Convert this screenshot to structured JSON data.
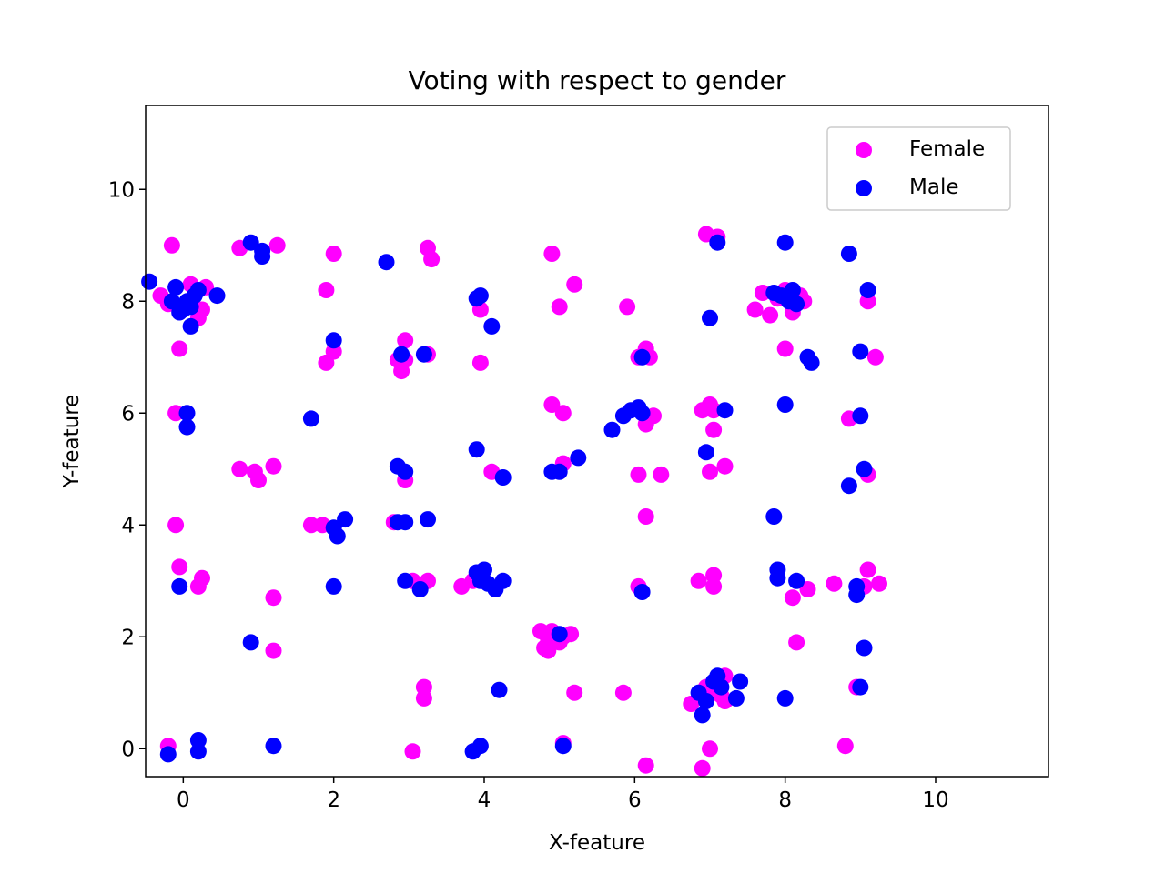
{
  "chart_data": {
    "type": "scatter",
    "title": "Voting with respect to gender",
    "xlabel": "X-feature",
    "ylabel": "Y-feature",
    "xlim": [
      -0.5,
      11.5
    ],
    "ylim": [
      -0.5,
      11.5
    ],
    "xticks": [
      0,
      2,
      4,
      6,
      8,
      10
    ],
    "yticks": [
      0,
      2,
      4,
      6,
      8,
      10
    ],
    "grid": false,
    "legend_position": "top-right",
    "series": [
      {
        "name": "Female",
        "color": "#ff00ff",
        "points": [
          [
            -0.15,
            9.0
          ],
          [
            -0.3,
            8.1
          ],
          [
            -0.2,
            7.95
          ],
          [
            0.1,
            8.3
          ],
          [
            0.3,
            8.25
          ],
          [
            0.25,
            7.85
          ],
          [
            0.2,
            7.7
          ],
          [
            -0.05,
            7.15
          ],
          [
            -0.1,
            6.0
          ],
          [
            -0.1,
            4.0
          ],
          [
            -0.05,
            3.25
          ],
          [
            0.2,
            2.9
          ],
          [
            0.25,
            3.05
          ],
          [
            -0.2,
            0.05
          ],
          [
            0.75,
            8.95
          ],
          [
            1.25,
            9.0
          ],
          [
            0.75,
            5.0
          ],
          [
            0.95,
            4.95
          ],
          [
            1.0,
            4.8
          ],
          [
            1.2,
            5.05
          ],
          [
            1.2,
            2.7
          ],
          [
            1.2,
            1.75
          ],
          [
            1.9,
            8.2
          ],
          [
            2.0,
            8.85
          ],
          [
            1.9,
            6.9
          ],
          [
            2.0,
            7.1
          ],
          [
            1.7,
            4.0
          ],
          [
            1.85,
            4.0
          ],
          [
            3.25,
            8.95
          ],
          [
            3.3,
            8.75
          ],
          [
            2.95,
            7.3
          ],
          [
            2.85,
            6.95
          ],
          [
            2.9,
            6.75
          ],
          [
            2.95,
            6.95
          ],
          [
            3.25,
            7.05
          ],
          [
            2.95,
            4.8
          ],
          [
            2.8,
            4.05
          ],
          [
            3.05,
            3.0
          ],
          [
            3.25,
            3.0
          ],
          [
            3.2,
            1.1
          ],
          [
            3.2,
            0.9
          ],
          [
            3.05,
            -0.05
          ],
          [
            3.95,
            7.85
          ],
          [
            3.95,
            6.9
          ],
          [
            4.1,
            4.95
          ],
          [
            3.7,
            2.9
          ],
          [
            3.85,
            3.0
          ],
          [
            4.9,
            8.85
          ],
          [
            5.2,
            8.3
          ],
          [
            5.0,
            7.9
          ],
          [
            4.9,
            6.15
          ],
          [
            5.05,
            6.0
          ],
          [
            5.05,
            5.1
          ],
          [
            4.75,
            2.1
          ],
          [
            4.9,
            2.1
          ],
          [
            4.85,
            1.95
          ],
          [
            5.05,
            2.0
          ],
          [
            5.15,
            2.05
          ],
          [
            5.0,
            1.9
          ],
          [
            4.8,
            1.8
          ],
          [
            4.85,
            1.75
          ],
          [
            5.2,
            1.0
          ],
          [
            5.05,
            0.1
          ],
          [
            5.9,
            7.9
          ],
          [
            6.05,
            7.0
          ],
          [
            6.15,
            7.15
          ],
          [
            6.2,
            7.0
          ],
          [
            6.15,
            5.8
          ],
          [
            6.25,
            5.95
          ],
          [
            6.05,
            4.9
          ],
          [
            6.35,
            4.9
          ],
          [
            6.15,
            4.15
          ],
          [
            6.05,
            2.9
          ],
          [
            5.85,
            1.0
          ],
          [
            6.15,
            -0.3
          ],
          [
            6.95,
            9.2
          ],
          [
            7.1,
            9.15
          ],
          [
            6.9,
            6.05
          ],
          [
            7.0,
            6.15
          ],
          [
            7.05,
            6.05
          ],
          [
            7.05,
            5.7
          ],
          [
            7.0,
            4.95
          ],
          [
            7.2,
            5.05
          ],
          [
            6.85,
            3.0
          ],
          [
            7.05,
            3.1
          ],
          [
            7.05,
            2.9
          ],
          [
            6.75,
            0.8
          ],
          [
            6.95,
            1.1
          ],
          [
            7.05,
            1.0
          ],
          [
            7.15,
            0.95
          ],
          [
            7.2,
            1.3
          ],
          [
            7.2,
            0.85
          ],
          [
            7.0,
            0.0
          ],
          [
            6.9,
            -0.35
          ],
          [
            7.6,
            7.85
          ],
          [
            7.7,
            8.15
          ],
          [
            7.8,
            7.75
          ],
          [
            7.9,
            8.05
          ],
          [
            8.0,
            8.2
          ],
          [
            8.1,
            7.8
          ],
          [
            8.2,
            8.1
          ],
          [
            8.25,
            8.0
          ],
          [
            8.0,
            7.15
          ],
          [
            8.1,
            2.7
          ],
          [
            8.15,
            1.9
          ],
          [
            8.3,
            2.85
          ],
          [
            8.65,
            2.95
          ],
          [
            8.85,
            5.9
          ],
          [
            9.1,
            8.0
          ],
          [
            9.2,
            7.0
          ],
          [
            9.1,
            4.9
          ],
          [
            9.1,
            3.2
          ],
          [
            9.05,
            2.9
          ],
          [
            9.25,
            2.95
          ],
          [
            8.95,
            1.1
          ],
          [
            8.8,
            0.05
          ]
        ]
      },
      {
        "name": "Male",
        "color": "#0000ff",
        "points": [
          [
            -0.45,
            8.35
          ],
          [
            -0.1,
            8.25
          ],
          [
            -0.15,
            8.0
          ],
          [
            0.0,
            7.85
          ],
          [
            -0.05,
            7.8
          ],
          [
            0.05,
            8.0
          ],
          [
            0.1,
            7.9
          ],
          [
            0.15,
            8.1
          ],
          [
            0.2,
            8.2
          ],
          [
            0.1,
            7.55
          ],
          [
            0.45,
            8.1
          ],
          [
            0.05,
            6.0
          ],
          [
            0.05,
            5.75
          ],
          [
            -0.05,
            2.9
          ],
          [
            0.2,
            0.15
          ],
          [
            0.2,
            -0.05
          ],
          [
            -0.2,
            -0.1
          ],
          [
            0.9,
            9.05
          ],
          [
            1.05,
            8.9
          ],
          [
            1.05,
            8.8
          ],
          [
            0.9,
            1.9
          ],
          [
            1.2,
            0.05
          ],
          [
            1.7,
            5.9
          ],
          [
            2.0,
            7.3
          ],
          [
            2.0,
            3.95
          ],
          [
            2.05,
            3.8
          ],
          [
            2.15,
            4.1
          ],
          [
            2.0,
            2.9
          ],
          [
            2.7,
            8.7
          ],
          [
            2.9,
            7.05
          ],
          [
            3.2,
            7.05
          ],
          [
            2.85,
            5.05
          ],
          [
            2.95,
            4.95
          ],
          [
            2.85,
            4.05
          ],
          [
            2.95,
            4.05
          ],
          [
            3.25,
            4.1
          ],
          [
            2.95,
            3.0
          ],
          [
            3.15,
            2.85
          ],
          [
            3.9,
            8.05
          ],
          [
            3.95,
            8.1
          ],
          [
            4.1,
            7.55
          ],
          [
            3.9,
            5.35
          ],
          [
            4.25,
            4.85
          ],
          [
            3.9,
            3.15
          ],
          [
            4.0,
            3.2
          ],
          [
            3.95,
            3.0
          ],
          [
            4.05,
            2.95
          ],
          [
            4.15,
            2.85
          ],
          [
            4.25,
            3.0
          ],
          [
            4.2,
            1.05
          ],
          [
            3.95,
            0.05
          ],
          [
            3.85,
            -0.05
          ],
          [
            4.9,
            4.95
          ],
          [
            5.0,
            4.95
          ],
          [
            5.25,
            5.2
          ],
          [
            5.0,
            2.05
          ],
          [
            5.05,
            0.05
          ],
          [
            5.7,
            5.7
          ],
          [
            5.85,
            5.95
          ],
          [
            5.95,
            6.05
          ],
          [
            6.05,
            6.1
          ],
          [
            6.1,
            6.0
          ],
          [
            6.1,
            7.0
          ],
          [
            6.1,
            2.8
          ],
          [
            7.0,
            7.7
          ],
          [
            7.1,
            9.05
          ],
          [
            6.95,
            5.3
          ],
          [
            7.2,
            6.05
          ],
          [
            6.85,
            1.0
          ],
          [
            6.9,
            0.6
          ],
          [
            6.95,
            0.85
          ],
          [
            7.05,
            1.2
          ],
          [
            7.1,
            1.3
          ],
          [
            7.15,
            1.1
          ],
          [
            7.4,
            1.2
          ],
          [
            7.35,
            0.9
          ],
          [
            7.85,
            8.15
          ],
          [
            7.95,
            8.1
          ],
          [
            8.05,
            8.0
          ],
          [
            8.1,
            8.2
          ],
          [
            8.15,
            7.95
          ],
          [
            8.0,
            9.05
          ],
          [
            8.0,
            6.15
          ],
          [
            8.3,
            7.0
          ],
          [
            8.35,
            6.9
          ],
          [
            7.85,
            4.15
          ],
          [
            7.9,
            3.2
          ],
          [
            7.9,
            3.05
          ],
          [
            8.15,
            3.0
          ],
          [
            8.0,
            0.9
          ],
          [
            8.85,
            8.85
          ],
          [
            9.1,
            8.2
          ],
          [
            9.0,
            7.1
          ],
          [
            9.0,
            5.95
          ],
          [
            8.85,
            4.7
          ],
          [
            9.05,
            5.0
          ],
          [
            8.95,
            2.9
          ],
          [
            8.95,
            2.75
          ],
          [
            9.05,
            1.8
          ],
          [
            9.0,
            1.1
          ]
        ]
      }
    ]
  }
}
